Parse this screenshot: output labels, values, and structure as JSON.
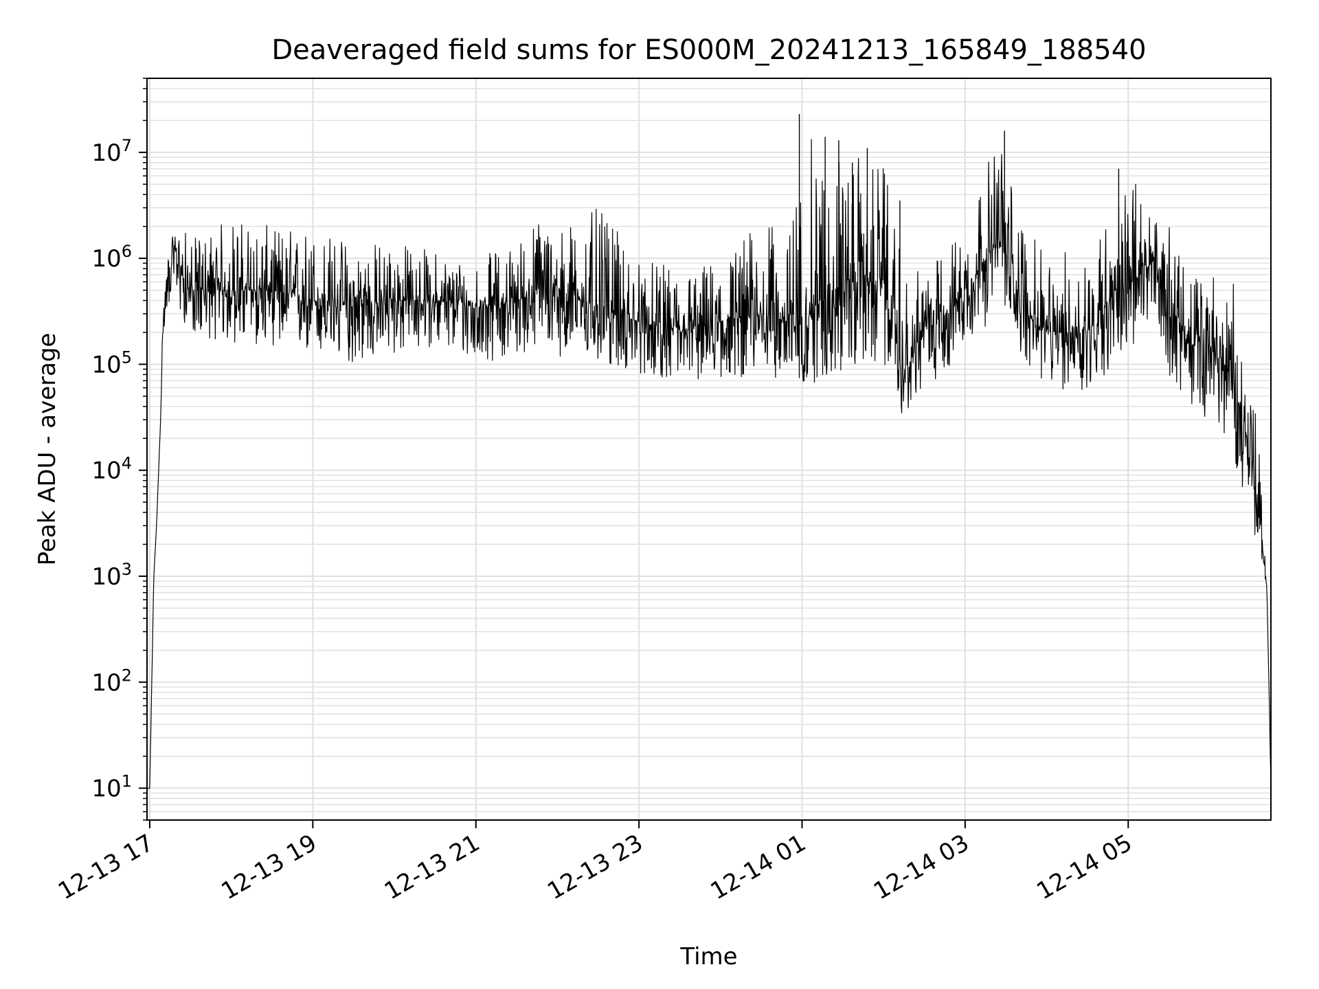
{
  "chart_data": {
    "type": "line",
    "title": "Deaveraged field sums for ES000M_20241213_165849_188540",
    "xlabel": "Time",
    "ylabel": "Peak ADU - average",
    "yscale": "log",
    "ylim": [
      5,
      50000000
    ],
    "xlim": [
      "2024-12-13 16:58",
      "2024-12-14 06:45"
    ],
    "grid": true,
    "line_color": "#000000",
    "grid_color": "#e0e0e0",
    "x_ticks": [
      {
        "value": "2024-12-13 17:00",
        "label": "12-13 17"
      },
      {
        "value": "2024-12-13 19:00",
        "label": "12-13 19"
      },
      {
        "value": "2024-12-13 21:00",
        "label": "12-13 21"
      },
      {
        "value": "2024-12-13 23:00",
        "label": "12-13 23"
      },
      {
        "value": "2024-12-14 01:00",
        "label": "12-14 01"
      },
      {
        "value": "2024-12-14 03:00",
        "label": "12-14 03"
      },
      {
        "value": "2024-12-14 05:00",
        "label": "12-14 05"
      }
    ],
    "y_ticks": [
      {
        "value": 10,
        "base": "10",
        "exp": "1"
      },
      {
        "value": 100,
        "base": "10",
        "exp": "2"
      },
      {
        "value": 1000,
        "base": "10",
        "exp": "3"
      },
      {
        "value": 10000,
        "base": "10",
        "exp": "4"
      },
      {
        "value": 100000,
        "base": "10",
        "exp": "5"
      },
      {
        "value": 1000000,
        "base": "10",
        "exp": "6"
      },
      {
        "value": 10000000,
        "base": "10",
        "exp": "7"
      }
    ],
    "series": [
      {
        "x": [
          "2024-12-13 16:58",
          "2024-12-13 17:00",
          "2024-12-13 17:03",
          "2024-12-13 17:05",
          "2024-12-13 17:08",
          "2024-12-13 17:10",
          "2024-12-13 17:15",
          "2024-12-13 17:20",
          "2024-12-13 17:25",
          "2024-12-13 17:30",
          "2024-12-13 18:00",
          "2024-12-13 18:30",
          "2024-12-13 19:00",
          "2024-12-13 19:30",
          "2024-12-13 20:00",
          "2024-12-13 20:30",
          "2024-12-13 21:00",
          "2024-12-13 21:30",
          "2024-12-13 21:50",
          "2024-12-13 22:00",
          "2024-12-13 22:30",
          "2024-12-13 23:00",
          "2024-12-13 23:30",
          "2024-12-14 00:00",
          "2024-12-14 00:30",
          "2024-12-14 00:50",
          "2024-12-14 01:00",
          "2024-12-14 01:30",
          "2024-12-14 02:00",
          "2024-12-14 02:15",
          "2024-12-14 02:30",
          "2024-12-14 02:45",
          "2024-12-14 03:00",
          "2024-12-14 03:25",
          "2024-12-14 03:45",
          "2024-12-14 04:00",
          "2024-12-14 04:30",
          "2024-12-14 04:50",
          "2024-12-14 05:00",
          "2024-12-14 05:20",
          "2024-12-14 05:30",
          "2024-12-14 05:45",
          "2024-12-14 06:00",
          "2024-12-14 06:15",
          "2024-12-14 06:25",
          "2024-12-14 06:35",
          "2024-12-14 06:42",
          "2024-12-14 06:44",
          "2024-12-14 06:45"
        ],
        "y": [
          10,
          10,
          1000,
          3000,
          30000,
          300000,
          1000000,
          1200000,
          600000,
          500000,
          500000,
          500000,
          400000,
          350000,
          400000,
          400000,
          350000,
          400000,
          500000,
          500000,
          350000,
          250000,
          200000,
          250000,
          300000,
          250000,
          250000,
          600000,
          600000,
          70000,
          250000,
          300000,
          500000,
          1500000,
          300000,
          200000,
          200000,
          500000,
          500000,
          1000000,
          400000,
          150000,
          150000,
          80000,
          30000,
          5000,
          800,
          50,
          10
        ],
        "envelope_low": [
          10,
          10,
          1000,
          3000,
          30000,
          200000,
          400000,
          300000,
          250000,
          200000,
          150000,
          150000,
          120000,
          100000,
          120000,
          150000,
          100000,
          120000,
          150000,
          120000,
          100000,
          80000,
          70000,
          70000,
          80000,
          70000,
          60000,
          80000,
          100000,
          30000,
          60000,
          80000,
          150000,
          300000,
          100000,
          60000,
          50000,
          100000,
          120000,
          250000,
          80000,
          40000,
          30000,
          20000,
          5000,
          2000,
          800,
          50,
          10
        ],
        "envelope_high": [
          10,
          10,
          1000,
          3000,
          40000,
          500000,
          1500000,
          1800000,
          2000000,
          1500000,
          2500000,
          2000000,
          2000000,
          1500000,
          1500000,
          1200000,
          1000000,
          1500000,
          3000000,
          2000000,
          3000000,
          1000000,
          800000,
          1000000,
          2500000,
          1500000,
          15000000,
          10000000,
          8000000,
          700000,
          800000,
          1200000,
          2500000,
          15000000,
          2000000,
          1000000,
          1500000,
          3000000,
          7000000,
          2500000,
          2000000,
          700000,
          800000,
          800000,
          200000,
          30000,
          800,
          50,
          10
        ],
        "spikes": [
          {
            "x": "2024-12-14 00:58",
            "y": 23000000
          },
          {
            "x": "2024-12-14 01:17",
            "y": 14000000
          },
          {
            "x": "2024-12-14 01:27",
            "y": 13000000
          },
          {
            "x": "2024-12-14 01:48",
            "y": 11000000
          },
          {
            "x": "2024-12-14 03:29",
            "y": 16000000
          },
          {
            "x": "2024-12-14 04:53",
            "y": 7000000
          },
          {
            "x": "2024-12-14 01:37",
            "y": 8000000
          },
          {
            "x": "2024-12-14 02:12",
            "y": 3500000
          }
        ]
      }
    ]
  }
}
